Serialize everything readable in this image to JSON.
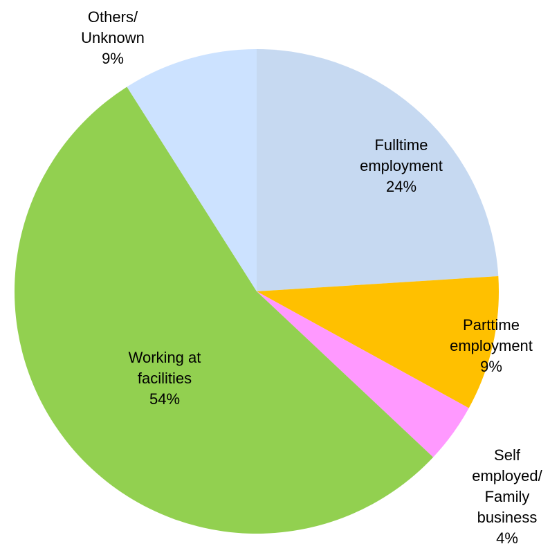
{
  "chart_data": {
    "type": "pie",
    "categories": [
      "Fulltime employment",
      "Parttime employment",
      "Self employed/ Family business",
      "Working at facilities",
      "Others/ Unknown"
    ],
    "values": [
      24,
      9,
      4,
      54,
      9
    ],
    "value_labels": [
      "24%",
      "9%",
      "4%",
      "54%",
      "9%"
    ],
    "colors": [
      "#c6d9f1",
      "#ffc000",
      "#ff99ff",
      "#92d050",
      "#cce2ff"
    ]
  }
}
